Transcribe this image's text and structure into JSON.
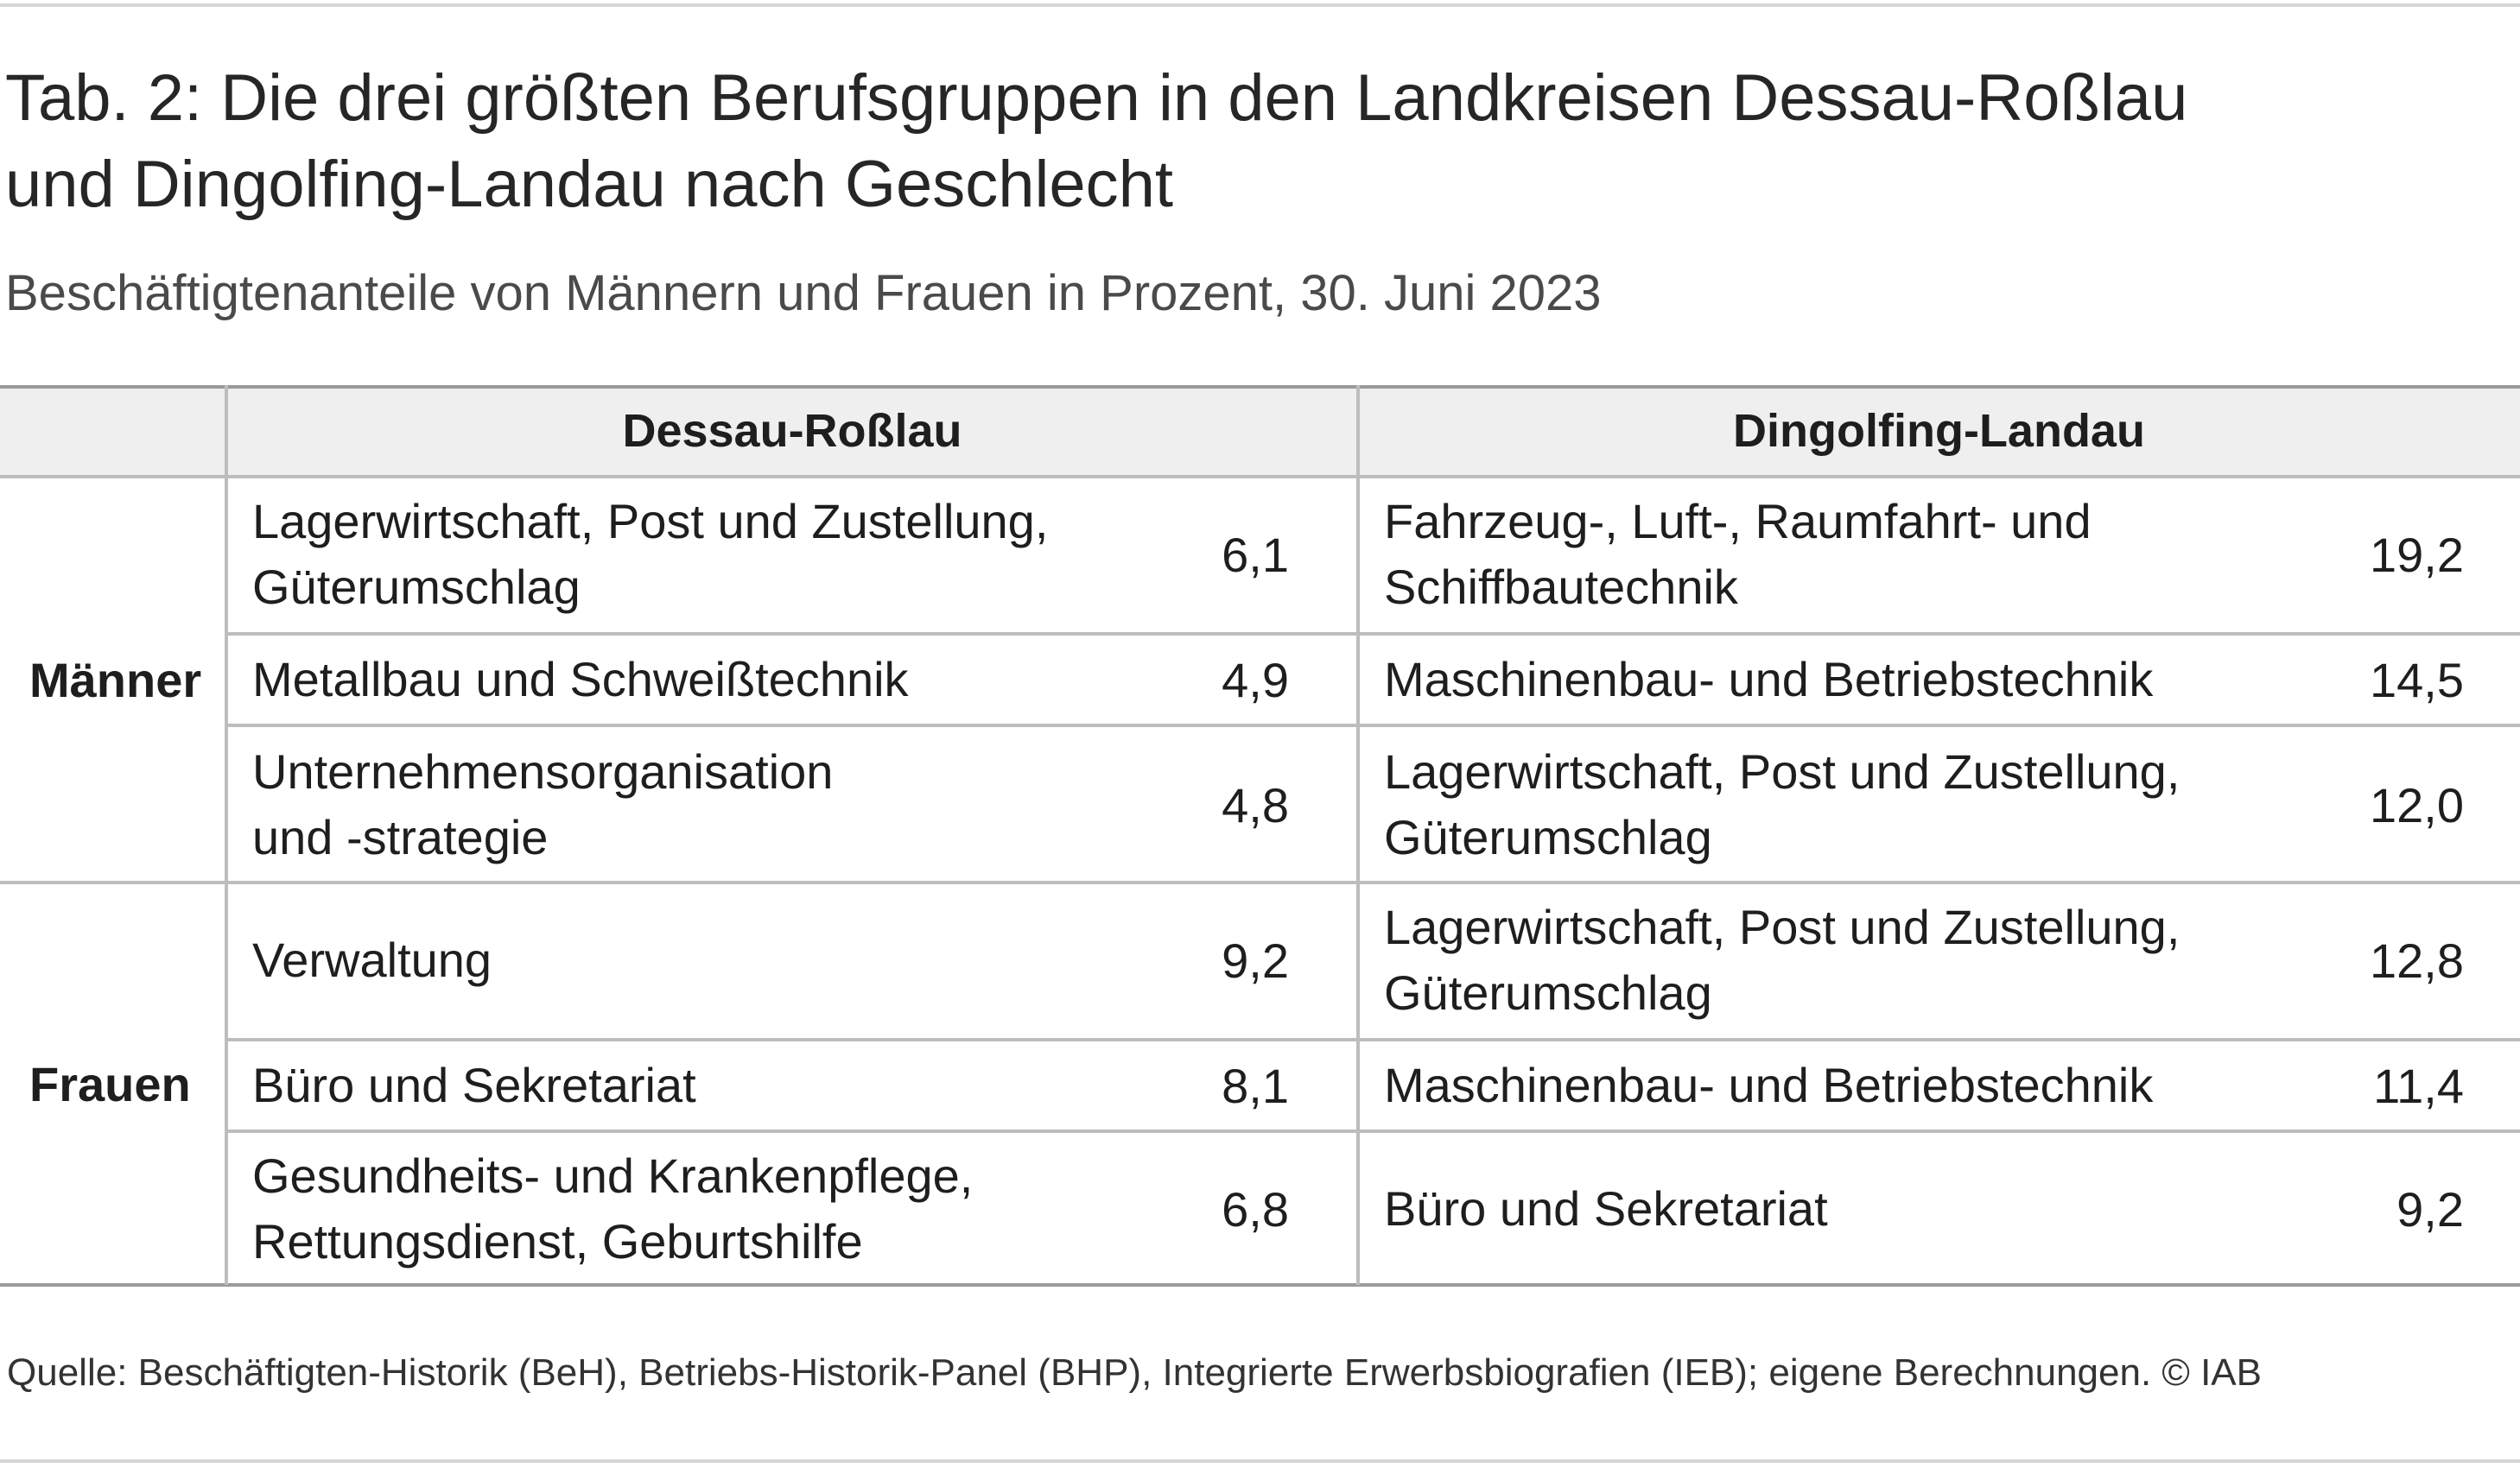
{
  "title_line1": "Tab. 2: Die drei größten Berufsgruppen in den Landkreisen Dessau-Roßlau",
  "title_line2": "und Dingolfing-Landau nach Geschlecht",
  "subtitle": "Beschäftigtenanteile von Männern und Frauen in Prozent, 30. Juni 2023",
  "columns": [
    "Dessau-Roßlau",
    "Dingolfing-Landau"
  ],
  "groups": [
    {
      "label": "Männer",
      "rows": [
        {
          "dessau_occ_l1": "Lagerwirtschaft, Post und Zustellung,",
          "dessau_occ_l2": "Güterumschlag",
          "dessau_val": "6,1",
          "dingolfing_occ_l1": "Fahrzeug-, Luft-, Raumfahrt- und",
          "dingolfing_occ_l2": "Schiffbautechnik",
          "dingolfing_val": "19,2"
        },
        {
          "dessau_occ_l1": "Metallbau und Schweißtechnik",
          "dessau_occ_l2": "",
          "dessau_val": "4,9",
          "dingolfing_occ_l1": "Maschinenbau- und Betriebstechnik",
          "dingolfing_occ_l2": "",
          "dingolfing_val": "14,5"
        },
        {
          "dessau_occ_l1": "Unternehmensorganisation",
          "dessau_occ_l2": "und -strategie",
          "dessau_val": "4,8",
          "dingolfing_occ_l1": "Lagerwirtschaft, Post und Zustellung,",
          "dingolfing_occ_l2": "Güterumschlag",
          "dingolfing_val": "12,0"
        }
      ]
    },
    {
      "label": "Frauen",
      "rows": [
        {
          "dessau_occ_l1": "Verwaltung",
          "dessau_occ_l2": "",
          "dessau_val": "9,2",
          "dingolfing_occ_l1": "Lagerwirtschaft, Post und Zustellung,",
          "dingolfing_occ_l2": "Güterumschlag",
          "dingolfing_val": "12,8"
        },
        {
          "dessau_occ_l1": "Büro und Sekretariat",
          "dessau_occ_l2": "",
          "dessau_val": "8,1",
          "dingolfing_occ_l1": "Maschinenbau- und Betriebstechnik",
          "dingolfing_occ_l2": "",
          "dingolfing_val": "11,4"
        },
        {
          "dessau_occ_l1": "Gesundheits- und Krankenpflege,",
          "dessau_occ_l2": "Rettungsdienst, Geburtshilfe",
          "dessau_val": "6,8",
          "dingolfing_occ_l1": "Büro und Sekretariat",
          "dingolfing_occ_l2": "",
          "dingolfing_val": "9,2"
        }
      ]
    }
  ],
  "source": "Quelle: Beschäftigten-Historik (BeH), Betriebs-Historik-Panel (BHP), Integrierte Erwerbsbiografien (IEB); eigene Berechnungen.  © IAB"
}
